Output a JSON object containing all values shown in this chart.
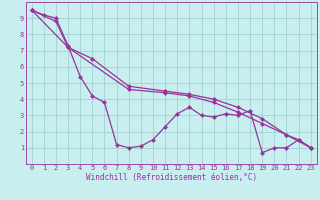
{
  "xlabel": "Windchill (Refroidissement éolien,°C)",
  "xlim": [
    -0.5,
    23.5
  ],
  "ylim": [
    0,
    10
  ],
  "xticks": [
    0,
    1,
    2,
    3,
    4,
    5,
    6,
    7,
    8,
    9,
    10,
    11,
    12,
    13,
    14,
    15,
    16,
    17,
    18,
    19,
    20,
    21,
    22,
    23
  ],
  "yticks": [
    1,
    2,
    3,
    4,
    5,
    6,
    7,
    8,
    9
  ],
  "bg_color": "#c8eef0",
  "line_color": "#993399",
  "grid_color": "#99cccc",
  "line1_x": [
    0,
    1,
    2,
    3,
    4,
    5,
    6,
    7,
    8,
    9,
    10,
    11,
    12,
    13,
    14,
    15,
    16,
    17,
    18,
    19,
    20,
    21,
    22,
    23
  ],
  "line1_y": [
    9.5,
    9.2,
    9.0,
    7.3,
    5.4,
    4.2,
    3.8,
    1.2,
    1.0,
    1.1,
    1.5,
    2.3,
    3.1,
    3.5,
    3.0,
    2.9,
    3.1,
    3.0,
    3.3,
    0.7,
    1.0,
    1.0,
    1.5,
    1.0
  ],
  "line2_x": [
    0,
    2,
    3,
    5,
    8,
    11,
    13,
    15,
    17,
    19,
    21,
    23
  ],
  "line2_y": [
    9.5,
    8.8,
    7.2,
    6.5,
    4.8,
    4.5,
    4.3,
    4.0,
    3.5,
    2.8,
    1.8,
    1.0
  ],
  "line3_x": [
    0,
    3,
    8,
    11,
    13,
    15,
    17,
    19,
    21,
    22,
    23
  ],
  "line3_y": [
    9.5,
    7.2,
    4.6,
    4.4,
    4.2,
    3.8,
    3.2,
    2.5,
    1.8,
    1.5,
    1.0
  ],
  "marker": "D",
  "markersize": 2.5,
  "linewidth": 0.9
}
